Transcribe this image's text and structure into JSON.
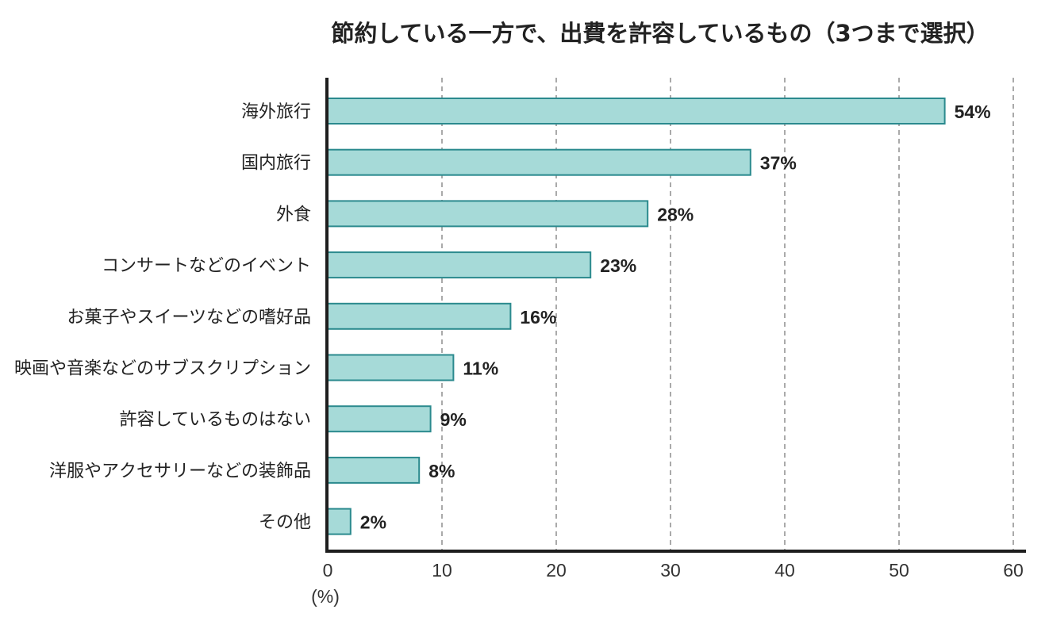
{
  "chart_data": {
    "type": "bar",
    "orientation": "horizontal",
    "title": "節約している一方で、出費を許容しているもの（3つまで選択）",
    "xlabel": "(%)",
    "ylabel": "",
    "xlim": [
      0,
      60
    ],
    "xticks": [
      "0",
      "10",
      "20",
      "30",
      "40",
      "50",
      "60"
    ],
    "grid": "vertical dashed",
    "categories": [
      "海外旅行",
      "国内旅行",
      "外食",
      "コンサートなどのイベント",
      "お菓子やスイーツなどの嗜好品",
      "映画や音楽などのサブスクリプション",
      "許容しているものはない",
      "洋服やアクセサリーなどの装飾品",
      "その他"
    ],
    "values": [
      54,
      37,
      28,
      23,
      16,
      11,
      9,
      8,
      2
    ],
    "data_labels": [
      "54%",
      "37%",
      "28%",
      "23%",
      "16%",
      "11%",
      "9%",
      "8%",
      "2%"
    ],
    "colors": {
      "bar_fill": "#a6dad8",
      "bar_stroke": "#2b8a8e",
      "axis": "#1e1e1e",
      "grid": "#555555"
    }
  }
}
